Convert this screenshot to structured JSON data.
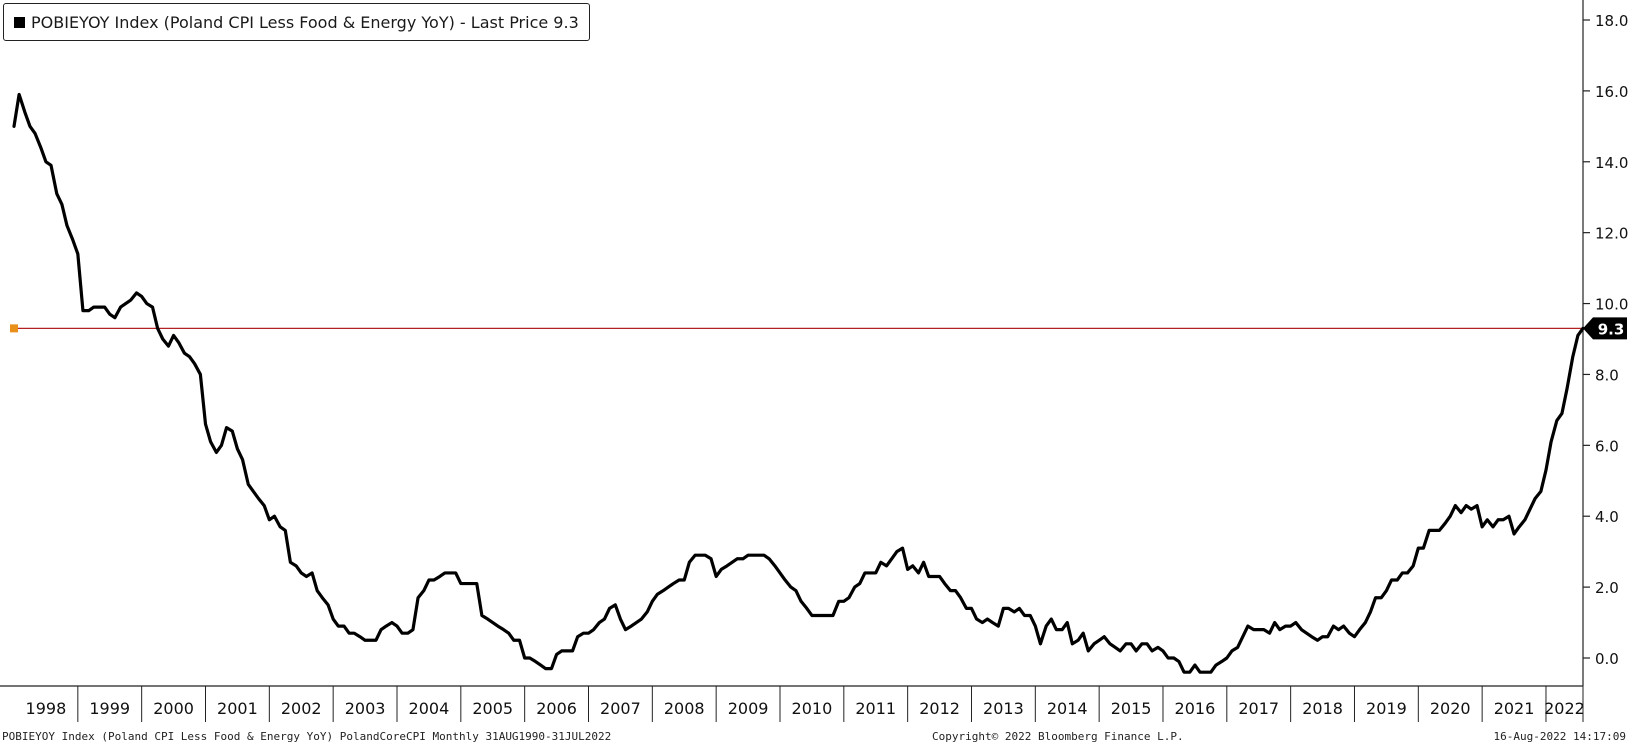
{
  "legend": {
    "text": "POBIEYOY Index (Poland CPI Less Food & Energy YoY) - Last Price 9.3"
  },
  "footer": {
    "left": "POBIEYOY Index (Poland CPI Less Food & Energy YoY) PolandCoreCPI  Monthly 31AUG1990-31JUL2022",
    "copyright": "Copyright© 2022 Bloomberg Finance L.P.",
    "timestamp": "16-Aug-2022 14:17:09"
  },
  "colors": {
    "series": "#000000",
    "last_price_line": "#b22222",
    "last_price_marker": "#e8901a",
    "last_price_badge": "#000000"
  },
  "chart_data": {
    "type": "line",
    "x_axis": {
      "ticks": [
        "1998",
        "1999",
        "2000",
        "2001",
        "2002",
        "2003",
        "2004",
        "2005",
        "2006",
        "2007",
        "2008",
        "2009",
        "2010",
        "2011",
        "2012",
        "2013",
        "2014",
        "2015",
        "2016",
        "2017",
        "2018",
        "2019",
        "2020",
        "2021",
        "2022"
      ],
      "range": [
        1998.0,
        2022.6
      ]
    },
    "y_axis": {
      "position": "right",
      "ticks": [
        "0.0",
        "2.0",
        "4.0",
        "6.0",
        "8.0",
        "10.0",
        "12.0",
        "14.0",
        "16.0",
        "18.0"
      ],
      "range": [
        -0.8,
        18.5
      ]
    },
    "last_price": {
      "value": 9.3,
      "label": "9.3"
    },
    "series": [
      {
        "points": [
          [
            1998.0,
            15.0
          ],
          [
            1998.08,
            15.9
          ],
          [
            1998.17,
            15.4
          ],
          [
            1998.25,
            15.0
          ],
          [
            1998.33,
            14.8
          ],
          [
            1998.42,
            14.4
          ],
          [
            1998.5,
            14.0
          ],
          [
            1998.58,
            13.9
          ],
          [
            1998.67,
            13.1
          ],
          [
            1998.75,
            12.8
          ],
          [
            1998.83,
            12.2
          ],
          [
            1998.92,
            11.8
          ],
          [
            1999.0,
            11.4
          ],
          [
            1999.08,
            9.8
          ],
          [
            1999.17,
            9.8
          ],
          [
            1999.25,
            9.9
          ],
          [
            1999.33,
            9.9
          ],
          [
            1999.42,
            9.9
          ],
          [
            1999.5,
            9.7
          ],
          [
            1999.58,
            9.6
          ],
          [
            1999.67,
            9.9
          ],
          [
            1999.75,
            10.0
          ],
          [
            1999.83,
            10.1
          ],
          [
            1999.92,
            10.3
          ],
          [
            2000.0,
            10.2
          ],
          [
            2000.08,
            10.0
          ],
          [
            2000.17,
            9.9
          ],
          [
            2000.25,
            9.3
          ],
          [
            2000.33,
            9.0
          ],
          [
            2000.42,
            8.8
          ],
          [
            2000.5,
            9.1
          ],
          [
            2000.58,
            8.9
          ],
          [
            2000.67,
            8.6
          ],
          [
            2000.75,
            8.5
          ],
          [
            2000.83,
            8.3
          ],
          [
            2000.92,
            8.0
          ],
          [
            2001.0,
            6.6
          ],
          [
            2001.08,
            6.1
          ],
          [
            2001.17,
            5.8
          ],
          [
            2001.25,
            6.0
          ],
          [
            2001.33,
            6.5
          ],
          [
            2001.42,
            6.4
          ],
          [
            2001.5,
            5.9
          ],
          [
            2001.58,
            5.6
          ],
          [
            2001.67,
            4.9
          ],
          [
            2001.75,
            4.7
          ],
          [
            2001.83,
            4.5
          ],
          [
            2001.92,
            4.3
          ],
          [
            2002.0,
            3.9
          ],
          [
            2002.08,
            4.0
          ],
          [
            2002.17,
            3.7
          ],
          [
            2002.25,
            3.6
          ],
          [
            2002.33,
            2.7
          ],
          [
            2002.42,
            2.6
          ],
          [
            2002.5,
            2.4
          ],
          [
            2002.58,
            2.3
          ],
          [
            2002.67,
            2.4
          ],
          [
            2002.75,
            1.9
          ],
          [
            2002.83,
            1.7
          ],
          [
            2002.92,
            1.5
          ],
          [
            2003.0,
            1.1
          ],
          [
            2003.08,
            0.9
          ],
          [
            2003.17,
            0.9
          ],
          [
            2003.25,
            0.7
          ],
          [
            2003.33,
            0.7
          ],
          [
            2003.42,
            0.6
          ],
          [
            2003.5,
            0.5
          ],
          [
            2003.58,
            0.5
          ],
          [
            2003.67,
            0.5
          ],
          [
            2003.75,
            0.8
          ],
          [
            2003.83,
            0.9
          ],
          [
            2003.92,
            1.0
          ],
          [
            2004.0,
            0.9
          ],
          [
            2004.08,
            0.7
          ],
          [
            2004.17,
            0.7
          ],
          [
            2004.25,
            0.8
          ],
          [
            2004.33,
            1.7
          ],
          [
            2004.42,
            1.9
          ],
          [
            2004.5,
            2.2
          ],
          [
            2004.58,
            2.2
          ],
          [
            2004.67,
            2.3
          ],
          [
            2004.75,
            2.4
          ],
          [
            2004.83,
            2.4
          ],
          [
            2004.92,
            2.4
          ],
          [
            2005.0,
            2.1
          ],
          [
            2005.08,
            2.1
          ],
          [
            2005.17,
            2.1
          ],
          [
            2005.25,
            2.1
          ],
          [
            2005.33,
            1.2
          ],
          [
            2005.42,
            1.1
          ],
          [
            2005.5,
            1.0
          ],
          [
            2005.58,
            0.9
          ],
          [
            2005.67,
            0.8
          ],
          [
            2005.75,
            0.7
          ],
          [
            2005.83,
            0.5
          ],
          [
            2005.92,
            0.5
          ],
          [
            2006.0,
            0.0
          ],
          [
            2006.08,
            0.0
          ],
          [
            2006.17,
            -0.1
          ],
          [
            2006.25,
            -0.2
          ],
          [
            2006.33,
            -0.3
          ],
          [
            2006.42,
            -0.3
          ],
          [
            2006.5,
            0.1
          ],
          [
            2006.58,
            0.2
          ],
          [
            2006.67,
            0.2
          ],
          [
            2006.75,
            0.2
          ],
          [
            2006.83,
            0.6
          ],
          [
            2006.92,
            0.7
          ],
          [
            2007.0,
            0.7
          ],
          [
            2007.08,
            0.8
          ],
          [
            2007.17,
            1.0
          ],
          [
            2007.25,
            1.1
          ],
          [
            2007.33,
            1.4
          ],
          [
            2007.42,
            1.5
          ],
          [
            2007.5,
            1.1
          ],
          [
            2007.58,
            0.8
          ],
          [
            2007.67,
            0.9
          ],
          [
            2007.75,
            1.0
          ],
          [
            2007.83,
            1.1
          ],
          [
            2007.92,
            1.3
          ],
          [
            2008.0,
            1.6
          ],
          [
            2008.08,
            1.8
          ],
          [
            2008.17,
            1.9
          ],
          [
            2008.25,
            2.0
          ],
          [
            2008.33,
            2.1
          ],
          [
            2008.42,
            2.2
          ],
          [
            2008.5,
            2.2
          ],
          [
            2008.58,
            2.7
          ],
          [
            2008.67,
            2.9
          ],
          [
            2008.75,
            2.9
          ],
          [
            2008.83,
            2.9
          ],
          [
            2008.92,
            2.8
          ],
          [
            2009.0,
            2.3
          ],
          [
            2009.08,
            2.5
          ],
          [
            2009.17,
            2.6
          ],
          [
            2009.25,
            2.7
          ],
          [
            2009.33,
            2.8
          ],
          [
            2009.42,
            2.8
          ],
          [
            2009.5,
            2.9
          ],
          [
            2009.58,
            2.9
          ],
          [
            2009.67,
            2.9
          ],
          [
            2009.75,
            2.9
          ],
          [
            2009.83,
            2.8
          ],
          [
            2009.92,
            2.6
          ],
          [
            2010.0,
            2.4
          ],
          [
            2010.08,
            2.2
          ],
          [
            2010.17,
            2.0
          ],
          [
            2010.25,
            1.9
          ],
          [
            2010.33,
            1.6
          ],
          [
            2010.42,
            1.4
          ],
          [
            2010.5,
            1.2
          ],
          [
            2010.58,
            1.2
          ],
          [
            2010.67,
            1.2
          ],
          [
            2010.75,
            1.2
          ],
          [
            2010.83,
            1.2
          ],
          [
            2010.92,
            1.6
          ],
          [
            2011.0,
            1.6
          ],
          [
            2011.08,
            1.7
          ],
          [
            2011.17,
            2.0
          ],
          [
            2011.25,
            2.1
          ],
          [
            2011.33,
            2.4
          ],
          [
            2011.42,
            2.4
          ],
          [
            2011.5,
            2.4
          ],
          [
            2011.58,
            2.7
          ],
          [
            2011.67,
            2.6
          ],
          [
            2011.75,
            2.8
          ],
          [
            2011.83,
            3.0
          ],
          [
            2011.92,
            3.1
          ],
          [
            2012.0,
            2.5
          ],
          [
            2012.08,
            2.6
          ],
          [
            2012.17,
            2.4
          ],
          [
            2012.25,
            2.7
          ],
          [
            2012.33,
            2.3
          ],
          [
            2012.42,
            2.3
          ],
          [
            2012.5,
            2.3
          ],
          [
            2012.58,
            2.1
          ],
          [
            2012.67,
            1.9
          ],
          [
            2012.75,
            1.9
          ],
          [
            2012.83,
            1.7
          ],
          [
            2012.92,
            1.4
          ],
          [
            2013.0,
            1.4
          ],
          [
            2013.08,
            1.1
          ],
          [
            2013.17,
            1.0
          ],
          [
            2013.25,
            1.1
          ],
          [
            2013.33,
            1.0
          ],
          [
            2013.42,
            0.9
          ],
          [
            2013.5,
            1.4
          ],
          [
            2013.58,
            1.4
          ],
          [
            2013.67,
            1.3
          ],
          [
            2013.75,
            1.4
          ],
          [
            2013.83,
            1.2
          ],
          [
            2013.92,
            1.2
          ],
          [
            2014.0,
            0.9
          ],
          [
            2014.08,
            0.4
          ],
          [
            2014.17,
            0.9
          ],
          [
            2014.25,
            1.1
          ],
          [
            2014.33,
            0.8
          ],
          [
            2014.42,
            0.8
          ],
          [
            2014.5,
            1.0
          ],
          [
            2014.58,
            0.4
          ],
          [
            2014.67,
            0.5
          ],
          [
            2014.75,
            0.7
          ],
          [
            2014.83,
            0.2
          ],
          [
            2014.92,
            0.4
          ],
          [
            2015.0,
            0.5
          ],
          [
            2015.08,
            0.6
          ],
          [
            2015.17,
            0.4
          ],
          [
            2015.25,
            0.3
          ],
          [
            2015.33,
            0.2
          ],
          [
            2015.42,
            0.4
          ],
          [
            2015.5,
            0.4
          ],
          [
            2015.58,
            0.2
          ],
          [
            2015.67,
            0.4
          ],
          [
            2015.75,
            0.4
          ],
          [
            2015.83,
            0.2
          ],
          [
            2015.92,
            0.3
          ],
          [
            2016.0,
            0.2
          ],
          [
            2016.08,
            0.0
          ],
          [
            2016.17,
            0.0
          ],
          [
            2016.25,
            -0.1
          ],
          [
            2016.33,
            -0.4
          ],
          [
            2016.42,
            -0.4
          ],
          [
            2016.5,
            -0.2
          ],
          [
            2016.58,
            -0.4
          ],
          [
            2016.67,
            -0.4
          ],
          [
            2016.75,
            -0.4
          ],
          [
            2016.83,
            -0.2
          ],
          [
            2016.92,
            -0.1
          ],
          [
            2017.0,
            0.0
          ],
          [
            2017.08,
            0.2
          ],
          [
            2017.17,
            0.3
          ],
          [
            2017.25,
            0.6
          ],
          [
            2017.33,
            0.9
          ],
          [
            2017.42,
            0.8
          ],
          [
            2017.5,
            0.8
          ],
          [
            2017.58,
            0.8
          ],
          [
            2017.67,
            0.7
          ],
          [
            2017.75,
            1.0
          ],
          [
            2017.83,
            0.8
          ],
          [
            2017.92,
            0.9
          ],
          [
            2018.0,
            0.9
          ],
          [
            2018.08,
            1.0
          ],
          [
            2018.17,
            0.8
          ],
          [
            2018.25,
            0.7
          ],
          [
            2018.33,
            0.6
          ],
          [
            2018.42,
            0.5
          ],
          [
            2018.5,
            0.6
          ],
          [
            2018.58,
            0.6
          ],
          [
            2018.67,
            0.9
          ],
          [
            2018.75,
            0.8
          ],
          [
            2018.83,
            0.9
          ],
          [
            2018.92,
            0.7
          ],
          [
            2019.0,
            0.6
          ],
          [
            2019.08,
            0.8
          ],
          [
            2019.17,
            1.0
          ],
          [
            2019.25,
            1.3
          ],
          [
            2019.33,
            1.7
          ],
          [
            2019.42,
            1.7
          ],
          [
            2019.5,
            1.9
          ],
          [
            2019.58,
            2.2
          ],
          [
            2019.67,
            2.2
          ],
          [
            2019.75,
            2.4
          ],
          [
            2019.83,
            2.4
          ],
          [
            2019.92,
            2.6
          ],
          [
            2020.0,
            3.1
          ],
          [
            2020.08,
            3.1
          ],
          [
            2020.17,
            3.6
          ],
          [
            2020.25,
            3.6
          ],
          [
            2020.33,
            3.6
          ],
          [
            2020.42,
            3.8
          ],
          [
            2020.5,
            4.0
          ],
          [
            2020.58,
            4.3
          ],
          [
            2020.67,
            4.1
          ],
          [
            2020.75,
            4.3
          ],
          [
            2020.83,
            4.2
          ],
          [
            2020.92,
            4.3
          ],
          [
            2021.0,
            3.7
          ],
          [
            2021.08,
            3.9
          ],
          [
            2021.17,
            3.7
          ],
          [
            2021.25,
            3.9
          ],
          [
            2021.33,
            3.9
          ],
          [
            2021.42,
            4.0
          ],
          [
            2021.5,
            3.5
          ],
          [
            2021.58,
            3.7
          ],
          [
            2021.67,
            3.9
          ],
          [
            2021.75,
            4.2
          ],
          [
            2021.83,
            4.5
          ],
          [
            2021.92,
            4.7
          ],
          [
            2022.0,
            5.3
          ],
          [
            2022.08,
            6.1
          ],
          [
            2022.17,
            6.7
          ],
          [
            2022.25,
            6.9
          ],
          [
            2022.33,
            7.6
          ],
          [
            2022.42,
            8.5
          ],
          [
            2022.5,
            9.1
          ],
          [
            2022.58,
            9.3
          ]
        ]
      }
    ]
  }
}
